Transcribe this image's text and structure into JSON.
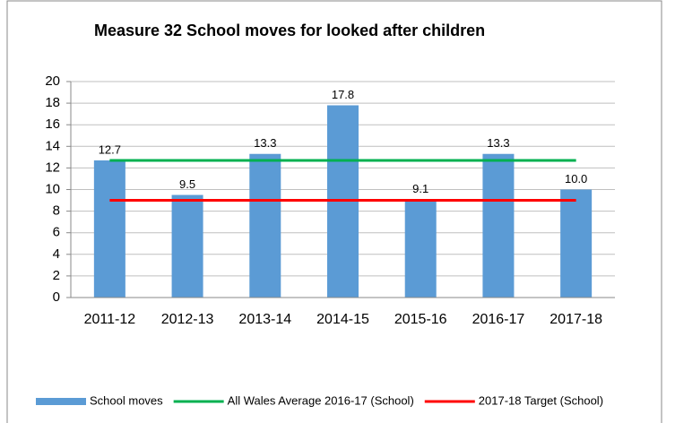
{
  "chart_data": {
    "type": "bar",
    "title": "Measure 32 School moves for looked after children",
    "categories": [
      "2011-12",
      "2012-13",
      "2013-14",
      "2014-15",
      "2015-16",
      "2016-17",
      "2017-18"
    ],
    "series": [
      {
        "name": "School moves",
        "type": "bar",
        "color": "#5b9bd5",
        "values": [
          12.7,
          9.5,
          13.3,
          17.8,
          9.1,
          13.3,
          10.0
        ],
        "value_labels": [
          "12.7",
          "9.5",
          "13.3",
          "17.8",
          "9.1",
          "13.3",
          "10.0"
        ]
      },
      {
        "name": "All Wales Average 2016-17 (School)",
        "type": "line",
        "color": "#00b050",
        "values": [
          12.7,
          12.7,
          12.7,
          12.7,
          12.7,
          12.7,
          12.7
        ]
      },
      {
        "name": "2017-18 Target (School)",
        "type": "line",
        "color": "#ff0000",
        "values": [
          9,
          9,
          9,
          9,
          9,
          9,
          9
        ]
      }
    ],
    "ylim": [
      0,
      20
    ],
    "yticks": [
      0,
      2,
      4,
      6,
      8,
      10,
      12,
      14,
      16,
      18,
      20
    ],
    "grid": true,
    "legend": "bottom"
  }
}
